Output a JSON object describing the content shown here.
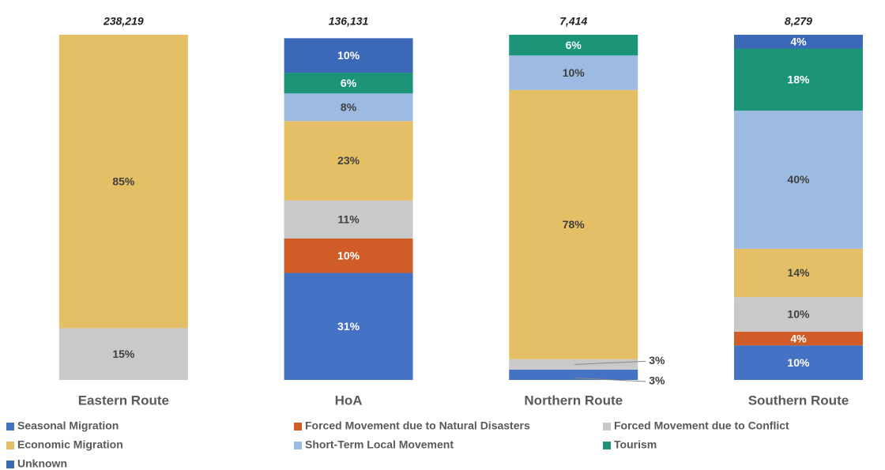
{
  "chart_data": {
    "type": "stacked_bar_100",
    "categories": [
      "Eastern Route",
      "HoA",
      "Northern Route",
      "Southern Route"
    ],
    "totals": [
      238219,
      136131,
      7414,
      8279
    ],
    "total_labels": [
      "238,219",
      "136,131",
      "7,414",
      "8,279"
    ],
    "ylim": [
      0,
      100
    ],
    "series": [
      {
        "name": "Seasonal Migration",
        "color": "#4472c4",
        "values": [
          0,
          31,
          3,
          10
        ],
        "value_labels": [
          null,
          "31%",
          "3%",
          "10%"
        ]
      },
      {
        "name": "Forced Movement due to Natural Disasters",
        "color": "#d05d27",
        "values": [
          0,
          10,
          0,
          4
        ],
        "value_labels": [
          null,
          "10%",
          null,
          "4%"
        ]
      },
      {
        "name": "Forced Movement due to Conflict",
        "color": "#c9c9c9",
        "values": [
          15,
          11,
          3,
          10
        ],
        "value_labels": [
          "15%",
          "11%",
          "3%",
          "10%"
        ]
      },
      {
        "name": "Economic Migration",
        "color": "#e4bf65",
        "values": [
          85,
          23,
          78,
          14
        ],
        "value_labels": [
          "85%",
          "23%",
          "78%",
          "14%"
        ]
      },
      {
        "name": "Short-Term Local Movement",
        "color": "#9dbae2",
        "values": [
          0,
          8,
          10,
          40
        ],
        "value_labels": [
          null,
          "8%",
          "10%",
          "40%"
        ]
      },
      {
        "name": "Tourism",
        "color": "#1b9478",
        "values": [
          0,
          6,
          6,
          18
        ],
        "value_labels": [
          null,
          "6%",
          "6%",
          "18%"
        ]
      },
      {
        "name": "Unknown",
        "color": "#3c68b8",
        "values": [
          0,
          10,
          0,
          4
        ],
        "value_labels": [
          null,
          "10%",
          null,
          "4%"
        ]
      }
    ]
  }
}
